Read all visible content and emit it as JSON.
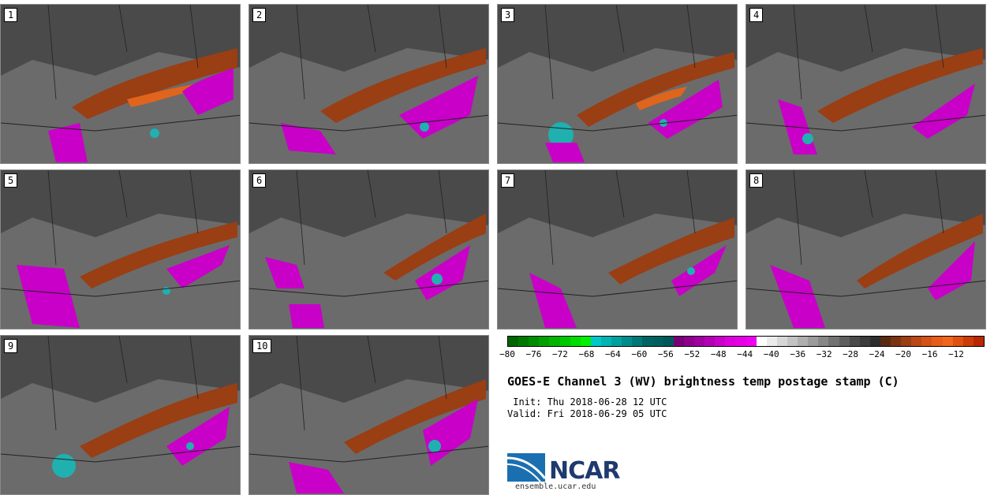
{
  "panels": [
    {
      "label": "1"
    },
    {
      "label": "2"
    },
    {
      "label": "3"
    },
    {
      "label": "4"
    },
    {
      "label": "5"
    },
    {
      "label": "6"
    },
    {
      "label": "7"
    },
    {
      "label": "8"
    },
    {
      "label": "9"
    },
    {
      "label": "10"
    }
  ],
  "colorbar": {
    "ticks": [
      "−80",
      "−76",
      "−72",
      "−68",
      "−64",
      "−60",
      "−56",
      "−52",
      "−48",
      "−44",
      "−40",
      "−36",
      "−32",
      "−28",
      "−24",
      "−20",
      "−16",
      "−12"
    ],
    "colors": [
      "#006400",
      "#007800",
      "#008c00",
      "#00a000",
      "#00b400",
      "#00c800",
      "#00dc00",
      "#00f000",
      "#00c8c8",
      "#00b4b4",
      "#00a0a0",
      "#008c8c",
      "#007878",
      "#006464",
      "#006060",
      "#005858",
      "#780078",
      "#8c008c",
      "#a000a0",
      "#b400b4",
      "#c800c8",
      "#dc00dc",
      "#e600e6",
      "#f000f0",
      "#ffffff",
      "#ebebeb",
      "#d7d7d7",
      "#c3c3c3",
      "#afafaf",
      "#9b9b9b",
      "#878787",
      "#737373",
      "#5f5f5f",
      "#4b4b4b",
      "#3c3c3c",
      "#2d2d2d",
      "#5a2a10",
      "#7a3412",
      "#9a3e14",
      "#ba4816",
      "#d25218",
      "#e85c1a",
      "#f0661c",
      "#e05010",
      "#cc3c08",
      "#b82800"
    ]
  },
  "title": "GOES-E Channel 3 (WV) brightness temp postage stamp (C)",
  "init": " Init: Thu 2018-06-28 12 UTC",
  "valid": "Valid: Fri 2018-06-29 05 UTC",
  "logo": {
    "text": "NCAR",
    "url": "ensemble.ucar.edu"
  },
  "colors": {
    "land_gray": "#5a5a5a",
    "dark": "#333333",
    "orange": "#9a3e14",
    "magenta": "#c800c8",
    "cyan": "#20b0b0"
  }
}
